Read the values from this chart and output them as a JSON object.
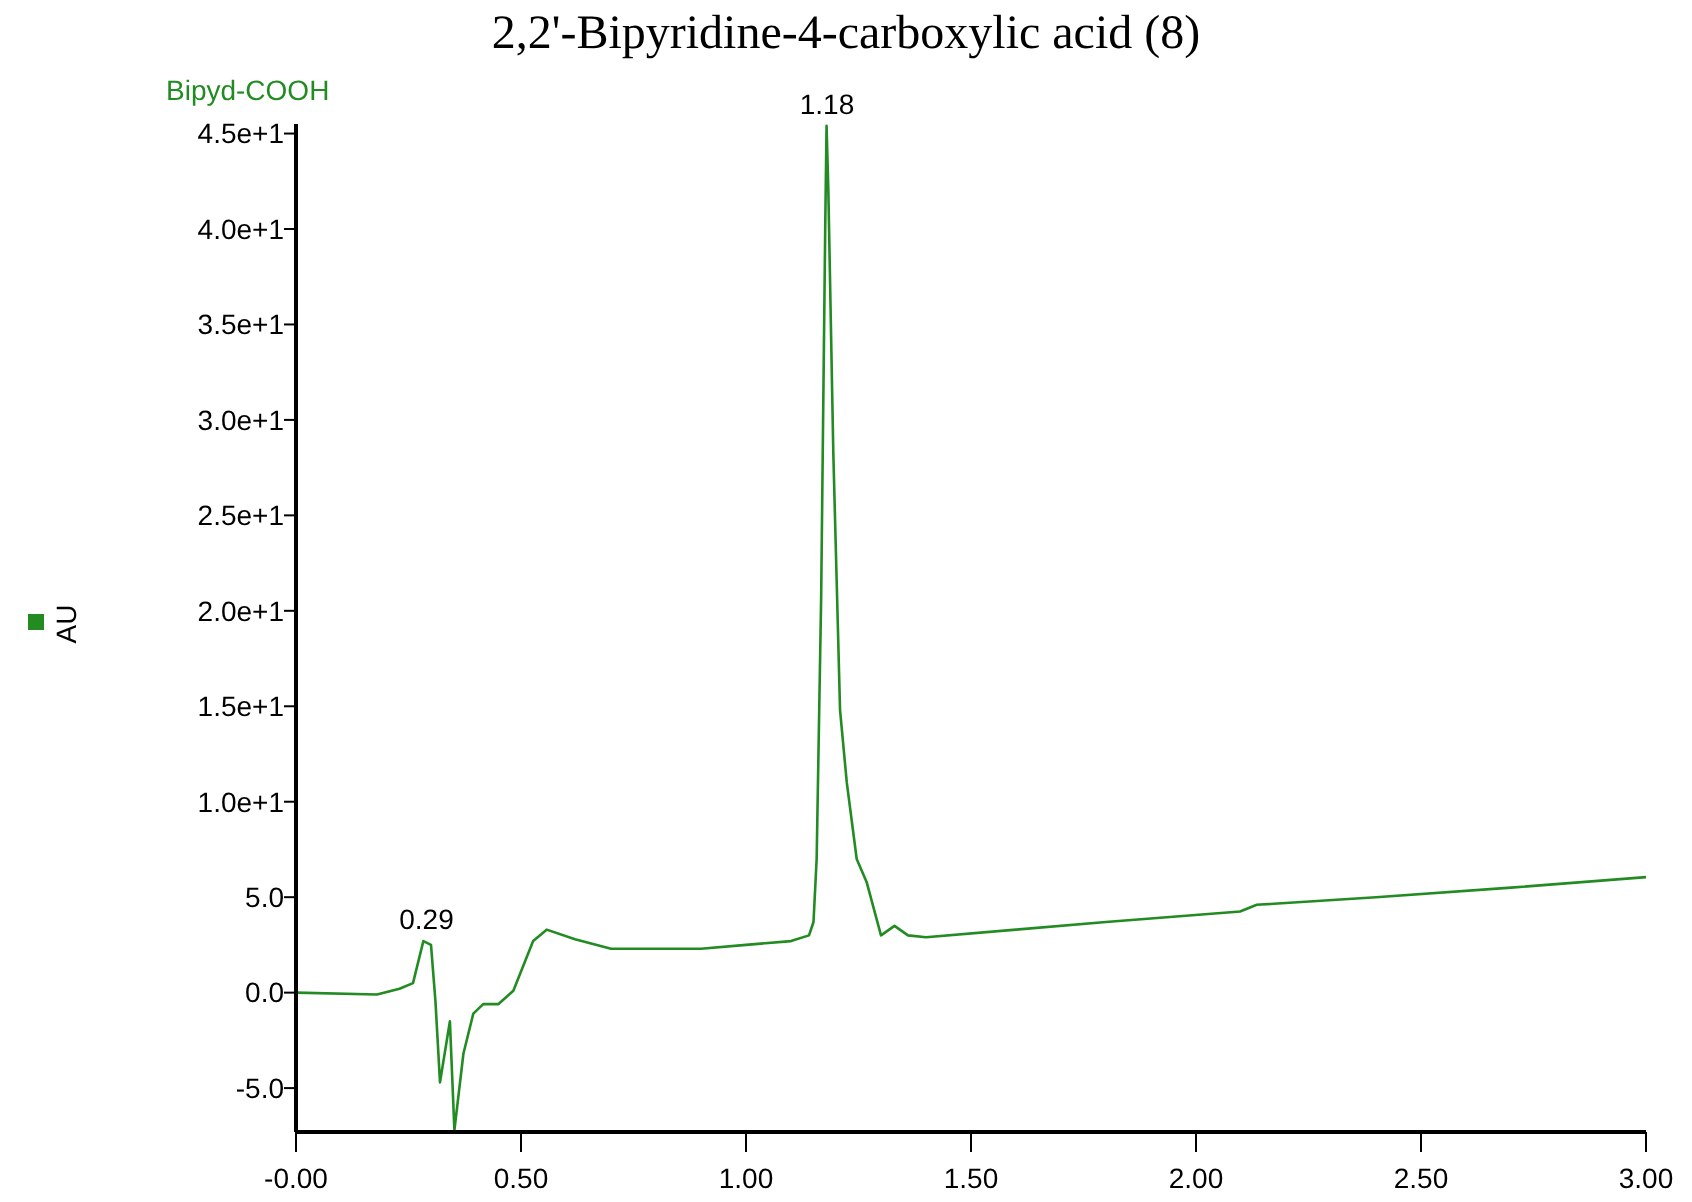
{
  "chart_data": {
    "type": "line",
    "title": "2,2'-Bipyridine-4-carboxylic acid (8)",
    "ylabel": "AU",
    "x": [
      0,
      0.18,
      0.23,
      0.26,
      0.283,
      0.3,
      0.31,
      0.32,
      0.342,
      0.352,
      0.372,
      0.394,
      0.416,
      0.45,
      0.483,
      0.527,
      0.557,
      0.62,
      0.7,
      0.9,
      1.0,
      1.1,
      1.14,
      1.15,
      1.157,
      1.167,
      1.176,
      1.179,
      1.183,
      1.194,
      1.209,
      1.224,
      1.246,
      1.268,
      1.3,
      1.33,
      1.36,
      1.4,
      1.6,
      1.8,
      2.098,
      2.135,
      2.4,
      2.7,
      3.0
    ],
    "series": [
      {
        "name": "Bipyd-COOH",
        "color": "#228b22",
        "values": [
          0,
          -0.1,
          0.2,
          0.5,
          2.7,
          2.5,
          -0.5,
          -4.7,
          -1.5,
          -7.2,
          -3.2,
          -1.1,
          -0.6,
          -0.6,
          0.1,
          2.7,
          3.3,
          2.8,
          2.3,
          2.3,
          2.5,
          2.7,
          3.0,
          3.7,
          7.0,
          20.7,
          40,
          45.4,
          42,
          28.3,
          14.8,
          11,
          7.0,
          5.8,
          3.0,
          3.5,
          3.0,
          2.9,
          3.3,
          3.7,
          4.25,
          4.6,
          5.0,
          5.5,
          6.05
        ]
      }
    ],
    "xlim": [
      0,
      3
    ],
    "ylim": [
      -7.3,
      45.5
    ],
    "xticks": [
      {
        "value": 0,
        "label": "-0.00"
      },
      {
        "value": 0.5,
        "label": "0.50"
      },
      {
        "value": 1,
        "label": "1.00"
      },
      {
        "value": 1.5,
        "label": "1.50"
      },
      {
        "value": 2,
        "label": "2.00"
      },
      {
        "value": 2.5,
        "label": "2.50"
      },
      {
        "value": 3,
        "label": "3.00"
      }
    ],
    "yticks": [
      {
        "value": -5,
        "label": "-5.0"
      },
      {
        "value": 0,
        "label": "0.0"
      },
      {
        "value": 5,
        "label": "5.0"
      },
      {
        "value": 10,
        "label": "1.0e+1"
      },
      {
        "value": 15,
        "label": "1.5e+1"
      },
      {
        "value": 20,
        "label": "2.0e+1"
      },
      {
        "value": 25,
        "label": "2.5e+1"
      },
      {
        "value": 30,
        "label": "3.0e+1"
      },
      {
        "value": 35,
        "label": "3.5e+1"
      },
      {
        "value": 40,
        "label": "4.0e+1"
      },
      {
        "value": 45,
        "label": "4.5e+1"
      }
    ],
    "annotations": [
      {
        "text": "0.29",
        "x": 0.29,
        "y": 2.7
      },
      {
        "text": "1.18",
        "x": 1.18,
        "y": 45.4
      }
    ],
    "grid": false,
    "legend": "top left",
    "marker": "none",
    "line_style": "solid"
  }
}
